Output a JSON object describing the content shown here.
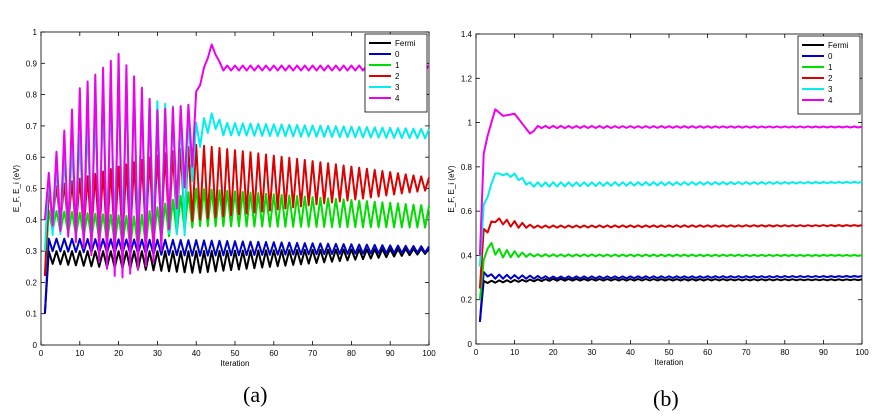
{
  "chart_data": [
    {
      "type": "line",
      "panel_label": "(a)",
      "xlabel": "Iteration",
      "ylabel": "E_F, E_i (eV)",
      "xlim": [
        0,
        100
      ],
      "ylim": [
        0,
        1
      ],
      "xticks": [
        0,
        10,
        20,
        30,
        40,
        50,
        60,
        70,
        80,
        90,
        100
      ],
      "yticks": [
        0,
        0.1,
        0.2,
        0.3,
        0.4,
        0.5,
        0.6,
        0.7,
        0.8,
        0.9,
        1
      ],
      "legend_position": "top-right",
      "series": [
        {
          "name": "Fermi",
          "color": "#000000",
          "segments": [
            [
              1,
              0.1,
              0.1,
              0
            ],
            [
              2,
              0.28,
              0.28,
              0.02
            ],
            [
              40,
              0.265,
              0.295,
              0.035
            ],
            [
              100,
              0.3,
              0.3,
              0.008
            ]
          ]
        },
        {
          "name": "0",
          "color": "#0000cc",
          "segments": [
            [
              1,
              0.1,
              0.1,
              0
            ],
            [
              2,
              0.32,
              0.32,
              0.02
            ],
            [
              40,
              0.31,
              0.305,
              0.025
            ],
            [
              100,
              0.305,
              0.305,
              0.01
            ]
          ]
        },
        {
          "name": "1",
          "color": "#00dd00",
          "segments": [
            [
              1,
              0.22,
              0.22,
              0
            ],
            [
              2,
              0.4,
              0.4,
              0.03
            ],
            [
              25,
              0.36,
              0.36,
              0.05
            ],
            [
              40,
              0.44,
              0.44,
              0.06
            ],
            [
              100,
              0.41,
              0.41,
              0.035
            ]
          ]
        },
        {
          "name": "2",
          "color": "#dd0000",
          "segments": [
            [
              1,
              0.22,
              0.22,
              0
            ],
            [
              2,
              0.45,
              0.45,
              0.05
            ],
            [
              20,
              0.45,
              0.45,
              0.12
            ],
            [
              40,
              0.52,
              0.52,
              0.12
            ],
            [
              100,
              0.515,
              0.515,
              0.02
            ]
          ]
        },
        {
          "name": "3",
          "color": "#00eeee",
          "segments": [
            [
              1,
              0.3,
              0.3,
              0
            ],
            [
              2,
              0.45,
              0.45,
              0.1
            ],
            [
              20,
              0.6,
              0.6,
              0.22
            ],
            [
              37,
              0.55,
              0.55,
              0.2
            ],
            [
              40,
              0.66,
              0.66,
              0.05
            ],
            [
              44,
              0.72,
              0.72,
              0.02
            ],
            [
              47,
              0.69,
              0.69,
              0.02
            ],
            [
              100,
              0.675,
              0.675,
              0.015
            ]
          ]
        },
        {
          "name": "4",
          "color": "#ee00ee",
          "segments": [
            [
              1,
              0.4,
              0.4,
              0
            ],
            [
              2,
              0.47,
              0.47,
              0.08
            ],
            [
              10,
              0.57,
              0.57,
              0.25
            ],
            [
              20,
              0.57,
              0.57,
              0.36
            ],
            [
              30,
              0.51,
              0.51,
              0.24
            ],
            [
              39,
              0.67,
              0.67,
              0.1
            ],
            [
              41,
              0.84,
              0.84,
              0.01
            ],
            [
              44,
              0.96,
              0.96,
              0
            ],
            [
              46,
              0.9,
              0.9,
              0.005
            ],
            [
              47,
              0.885,
              0.885,
              0.008
            ],
            [
              100,
              0.885,
              0.885,
              0.008
            ]
          ]
        }
      ]
    },
    {
      "type": "line",
      "panel_label": "(b)",
      "xlabel": "Iteration",
      "ylabel": "E_F, E_i (eV)",
      "xlim": [
        0,
        100
      ],
      "ylim": [
        0,
        1.4
      ],
      "xticks": [
        0,
        10,
        20,
        30,
        40,
        50,
        60,
        70,
        80,
        90,
        100
      ],
      "yticks": [
        0,
        0.2,
        0.4,
        0.6,
        0.8,
        1,
        1.2,
        1.4
      ],
      "legend_position": "top-right",
      "series": [
        {
          "name": "Fermi",
          "color": "#000000",
          "segments": [
            [
              1,
              0.1,
              0.1,
              0
            ],
            [
              2,
              0.28,
              0.28,
              0.005
            ],
            [
              20,
              0.29,
              0.29,
              0.004
            ],
            [
              100,
              0.29,
              0.29,
              0.002
            ]
          ]
        },
        {
          "name": "0",
          "color": "#0000cc",
          "segments": [
            [
              1,
              0.1,
              0.1,
              0
            ],
            [
              2,
              0.32,
              0.32,
              0.005
            ],
            [
              4,
              0.305,
              0.305,
              0.01
            ],
            [
              20,
              0.3,
              0.3,
              0.005
            ],
            [
              100,
              0.305,
              0.305,
              0.002
            ]
          ]
        },
        {
          "name": "1",
          "color": "#00dd00",
          "segments": [
            [
              1,
              0.2,
              0.2,
              0
            ],
            [
              2,
              0.37,
              0.37,
              0.01
            ],
            [
              3,
              0.45,
              0.45,
              0.02
            ],
            [
              6,
              0.41,
              0.41,
              0.02
            ],
            [
              15,
              0.4,
              0.4,
              0.005
            ],
            [
              100,
              0.4,
              0.4,
              0.002
            ]
          ]
        },
        {
          "name": "2",
          "color": "#dd0000",
          "segments": [
            [
              1,
              0.25,
              0.25,
              0
            ],
            [
              2,
              0.5,
              0.5,
              0.02
            ],
            [
              5,
              0.56,
              0.56,
              0.01
            ],
            [
              10,
              0.54,
              0.54,
              0.015
            ],
            [
              15,
              0.53,
              0.53,
              0.005
            ],
            [
              100,
              0.535,
              0.535,
              0.002
            ]
          ]
        },
        {
          "name": "3",
          "color": "#00eeee",
          "segments": [
            [
              1,
              0.35,
              0.35,
              0
            ],
            [
              2,
              0.62,
              0.62,
              0.01
            ],
            [
              5,
              0.77,
              0.77,
              0
            ],
            [
              10,
              0.76,
              0.76,
              0.01
            ],
            [
              14,
              0.72,
              0.72,
              0.01
            ],
            [
              100,
              0.73,
              0.73,
              0.002
            ]
          ]
        },
        {
          "name": "4",
          "color": "#ee00ee",
          "segments": [
            [
              1,
              0.4,
              0.4,
              0
            ],
            [
              2,
              0.86,
              0.86,
              0
            ],
            [
              3,
              0.94,
              0.94,
              0
            ],
            [
              5,
              1.06,
              1.06,
              0
            ],
            [
              7,
              1.03,
              1.03,
              0
            ],
            [
              10,
              1.04,
              1.04,
              0
            ],
            [
              14,
              0.95,
              0.95,
              0
            ],
            [
              16,
              0.98,
              0.98,
              0.005
            ],
            [
              100,
              0.98,
              0.98,
              0.002
            ]
          ]
        }
      ]
    }
  ]
}
